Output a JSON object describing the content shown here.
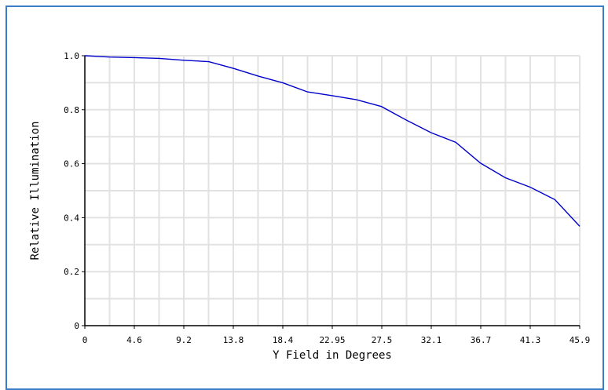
{
  "chart_data": {
    "type": "line",
    "xlabel": "Y Field in Degrees",
    "ylabel": "Relative Illumination",
    "x_ticks": [
      "0",
      "4.6",
      "9.2",
      "13.8",
      "18.4",
      "22.95",
      "27.5",
      "32.1",
      "36.7",
      "41.3",
      "45.9"
    ],
    "y_ticks": [
      "0",
      "0.2",
      "0.4",
      "0.6",
      "0.8",
      "1.0"
    ],
    "xlim": [
      0,
      45.9
    ],
    "ylim": [
      0,
      1.0
    ],
    "grid": true,
    "line_color": "#0000cc",
    "series": [
      {
        "x": [
          0,
          2.3,
          4.6,
          6.9,
          9.2,
          11.5,
          13.8,
          16.1,
          18.4,
          20.65,
          22.95,
          25.2,
          27.5,
          29.8,
          32.1,
          34.4,
          36.7,
          39.0,
          41.3,
          43.6,
          45.9
        ],
        "y": [
          1.0,
          0.995,
          0.993,
          0.99,
          0.983,
          0.978,
          0.953,
          0.924,
          0.899,
          0.866,
          0.852,
          0.837,
          0.812,
          0.762,
          0.715,
          0.679,
          0.602,
          0.548,
          0.513,
          0.467,
          0.368
        ]
      }
    ]
  }
}
